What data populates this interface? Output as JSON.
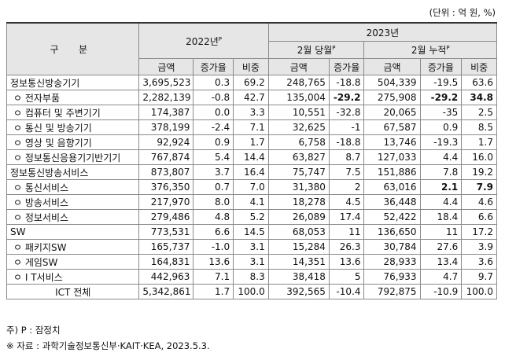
{
  "unit_note": "(단위 : 억 원, %)",
  "header": {
    "gubun": "구 분",
    "y2022": "2022년",
    "y2023": "2023년",
    "sup_p": "P",
    "feb_month": "2월 당월",
    "feb_cum": "2월 누적",
    "col_amount": "금액",
    "col_growth": "증가율",
    "col_share": "비중"
  },
  "rows": [
    {
      "label": "정보통신방송기기",
      "level": 0,
      "c": [
        "3,695,523",
        "0.3",
        "69.2",
        "248,765",
        "-18.8",
        "504,339",
        "-19.5",
        "63.6"
      ],
      "bold": []
    },
    {
      "label": "ㅇ 전자부품",
      "level": 1,
      "c": [
        "2,282,139",
        "-0.8",
        "42.7",
        "135,004",
        "-29.2",
        "275,908",
        "-29.2",
        "34.8"
      ],
      "bold": [
        4,
        6,
        7
      ]
    },
    {
      "label": "ㅇ 컴퓨터 및 주변기기",
      "level": 1,
      "c": [
        "174,387",
        "0.0",
        "3.3",
        "10,551",
        "-32.8",
        "20,065",
        "-35",
        "2.5"
      ],
      "bold": []
    },
    {
      "label": "ㅇ 통신 및 방송기기",
      "level": 1,
      "c": [
        "378,199",
        "-2.4",
        "7.1",
        "32,625",
        "-1",
        "67,587",
        "0.9",
        "8.5"
      ],
      "bold": []
    },
    {
      "label": "ㅇ 영상 및 음향기기",
      "level": 1,
      "c": [
        "92,924",
        "0.9",
        "1.7",
        "6,758",
        "-18.8",
        "13,746",
        "-19.3",
        "1.7"
      ],
      "bold": []
    },
    {
      "label": "ㅇ 정보통신응용기기반기기",
      "level": 1,
      "c": [
        "767,874",
        "5.4",
        "14.4",
        "63,827",
        "8.7",
        "127,033",
        "4.4",
        "16.0"
      ],
      "bold": []
    },
    {
      "label": "정보통신방송서비스",
      "level": 0,
      "c": [
        "873,807",
        "3.7",
        "16.4",
        "75,747",
        "7.5",
        "151,886",
        "7.8",
        "19.2"
      ],
      "bold": []
    },
    {
      "label": "ㅇ 통신서비스",
      "level": 1,
      "c": [
        "376,350",
        "0.7",
        "7.0",
        "31,380",
        "2",
        "63,016",
        "2.1",
        "7.9"
      ],
      "bold": [
        6,
        7
      ]
    },
    {
      "label": "ㅇ 방송서비스",
      "level": 1,
      "c": [
        "217,970",
        "8.0",
        "4.1",
        "18,278",
        "4.5",
        "36,448",
        "4.4",
        "4.6"
      ],
      "bold": []
    },
    {
      "label": "ㅇ 정보서비스",
      "level": 1,
      "c": [
        "279,486",
        "4.8",
        "5.2",
        "26,089",
        "17.4",
        "52,422",
        "18.4",
        "6.6"
      ],
      "bold": []
    },
    {
      "label": "SW",
      "level": 0,
      "c": [
        "773,531",
        "6.6",
        "14.5",
        "68,053",
        "11",
        "136,650",
        "11",
        "17.2"
      ],
      "bold": []
    },
    {
      "label": "ㅇ 패키지SW",
      "level": 1,
      "c": [
        "165,737",
        "-1.0",
        "3.1",
        "15,284",
        "26.3",
        "30,784",
        "27.6",
        "3.9"
      ],
      "bold": []
    },
    {
      "label": "ㅇ 게임SW",
      "level": 1,
      "c": [
        "164,831",
        "13.6",
        "3.1",
        "14,351",
        "13.6",
        "28,933",
        "13.4",
        "3.6"
      ],
      "bold": []
    },
    {
      "label": "ㅇ I T서비스",
      "level": 1,
      "c": [
        "442,963",
        "7.1",
        "8.3",
        "38,418",
        "5",
        "76,933",
        "4.7",
        "9.7"
      ],
      "bold": []
    },
    {
      "label": "ICT 전체",
      "level": 2,
      "c": [
        "5,342,861",
        "1.7",
        "100.0",
        "392,565",
        "-10.4",
        "792,875",
        "-10.9",
        "100.0"
      ],
      "bold": []
    }
  ],
  "notes": {
    "note1": "주) P : 잠정치",
    "note2": "※ 자료 : 과학기술정보통신부·KAIT·KEA, 2023.5.3."
  }
}
